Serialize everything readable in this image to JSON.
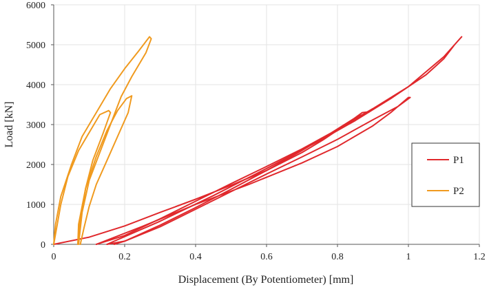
{
  "chart_data": {
    "type": "line",
    "title": "",
    "xlabel": "Displacement (By Potentiometer) [mm]",
    "ylabel": "Load [kN]",
    "xlim": [
      0,
      1.2
    ],
    "ylim": [
      0,
      6000
    ],
    "xticks": [
      0,
      0.2,
      0.4,
      0.6,
      0.8,
      1,
      1.2
    ],
    "xtick_labels": [
      "0",
      "0.2",
      "0.4",
      "0.6",
      "0.8",
      "1",
      "1.2"
    ],
    "yticks": [
      0,
      1000,
      2000,
      3000,
      4000,
      5000,
      6000
    ],
    "ytick_labels": [
      "0",
      "1000",
      "2000",
      "3000",
      "4000",
      "5000",
      "6000"
    ],
    "grid": true,
    "legend_position": "right",
    "series": [
      {
        "name": "P1",
        "color": "#e0282c",
        "loops": [
          {
            "x": [
              0.0,
              0.1,
              0.2,
              0.3,
              0.4,
              0.5,
              0.6,
              0.7,
              0.76,
              0.82,
              0.87,
              0.89,
              0.85,
              0.78,
              0.7,
              0.6,
              0.5,
              0.4,
              0.3,
              0.2,
              0.12
            ],
            "y": [
              0,
              180,
              460,
              800,
              1130,
              1480,
              1850,
              2300,
              2620,
              2980,
              3300,
              3320,
              3170,
              2780,
              2390,
              1950,
              1520,
              1080,
              640,
              220,
              0
            ]
          },
          {
            "x": [
              0.12,
              0.25,
              0.4,
              0.55,
              0.7,
              0.8,
              0.9,
              0.95,
              1.0,
              1.005,
              0.97,
              0.9,
              0.8,
              0.7,
              0.6,
              0.5,
              0.4,
              0.3,
              0.2,
              0.15
            ],
            "y": [
              0,
              450,
              1000,
              1500,
              2040,
              2450,
              2970,
              3300,
              3680,
              3680,
              3450,
              3120,
              2630,
              2190,
              1760,
              1320,
              880,
              440,
              80,
              0
            ]
          },
          {
            "x": [
              0.15,
              0.3,
              0.45,
              0.6,
              0.75,
              0.85,
              0.95,
              1.05,
              1.1,
              1.13,
              1.15,
              1.145,
              1.1,
              1.0,
              0.9,
              0.8,
              0.7,
              0.6,
              0.5,
              0.4,
              0.3,
              0.2,
              0.17
            ],
            "y": [
              0,
              580,
              1220,
              1900,
              2600,
              3100,
              3650,
              4250,
              4650,
              5000,
              5200,
              5150,
              4700,
              3950,
              3400,
              2880,
              2350,
              1850,
              1380,
              920,
              480,
              80,
              0
            ]
          }
        ]
      },
      {
        "name": "P2",
        "color": "#f09a1e",
        "loops": [
          {
            "x": [
              0.0,
              0.02,
              0.04,
              0.07,
              0.1,
              0.13,
              0.155,
              0.16,
              0.14,
              0.11,
              0.09,
              0.075,
              0.068
            ],
            "y": [
              0,
              1000,
              1700,
              2350,
              2800,
              3250,
              3350,
              3300,
              2800,
              2100,
              1400,
              600,
              0
            ]
          },
          {
            "x": [
              0.068,
              0.07,
              0.09,
              0.12,
              0.15,
              0.18,
              0.205,
              0.22,
              0.21,
              0.18,
              0.15,
              0.12,
              0.1,
              0.085,
              0.075
            ],
            "y": [
              0,
              500,
              1400,
              2200,
              2850,
              3350,
              3650,
              3720,
              3300,
              2700,
              2100,
              1500,
              950,
              400,
              0
            ]
          },
          {
            "x": [
              0.0,
              0.005,
              0.02,
              0.05,
              0.08,
              0.12,
              0.16,
              0.2,
              0.24,
              0.27,
              0.275,
              0.26,
              0.22,
              0.19,
              0.16,
              0.13,
              0.1,
              0.08,
              0.07
            ],
            "y": [
              0,
              500,
              1200,
              2000,
              2700,
              3300,
              3900,
              4400,
              4850,
              5200,
              5150,
              4800,
              4200,
              3700,
              3000,
              2300,
              1600,
              800,
              0
            ]
          }
        ]
      }
    ]
  }
}
